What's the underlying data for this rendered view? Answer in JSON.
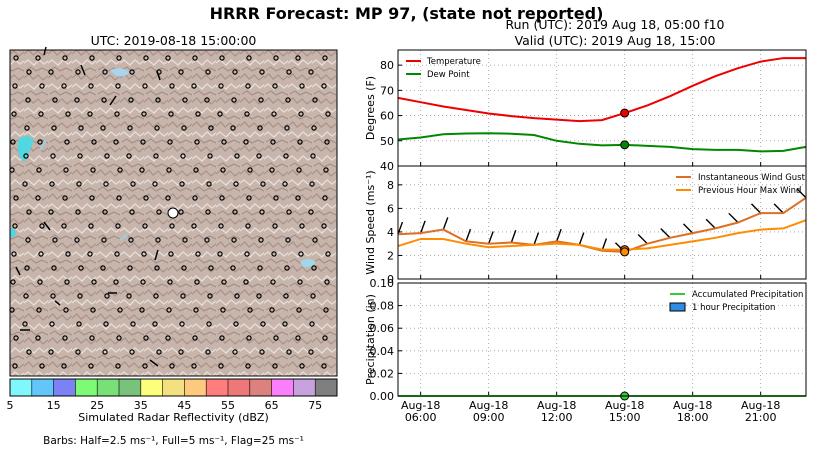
{
  "header": {
    "title": "HRRR Forecast: MP 97, (state not reported)",
    "run_line": "Run (UTC): 2019 Aug 18, 05:00 f10",
    "valid_line": "Valid (UTC): 2019 Aug 18, 15:00"
  },
  "map": {
    "title": "UTC: 2019-08-18 15:00:00",
    "colorbar_label": "Simulated Radar Reflectivity (dBZ)",
    "colorbar_ticks": [
      "5",
      "15",
      "25",
      "35",
      "45",
      "55",
      "65",
      "75"
    ],
    "colorbar_colors": [
      "#7ff7fb",
      "#62c6f9",
      "#7c82f6",
      "#7efa77",
      "#78e077",
      "#79c27c",
      "#fefe7d",
      "#f3e080",
      "#fdca7d",
      "#fe7d7d",
      "#ee7777",
      "#dd8180",
      "#fb7efb",
      "#c8a2df",
      "#7f7f7f"
    ],
    "barbs_note": "Barbs: Half=2.5 ms⁻¹, Full=5 ms⁻¹, Flag=25 ms⁻¹"
  },
  "chart_data": [
    {
      "type": "line",
      "ylabel": "Degrees (F)",
      "ylim": [
        40,
        86
      ],
      "yticks": [
        "40",
        "50",
        "60",
        "70",
        "80"
      ],
      "grid": true,
      "legend_position": "top-left",
      "x_hours": [
        5,
        6,
        7,
        8,
        9,
        10,
        11,
        12,
        13,
        14,
        15,
        16,
        17,
        18,
        19,
        20,
        21,
        22,
        23
      ],
      "series": [
        {
          "name": "Temperature",
          "color": "#ee0000",
          "values": [
            67,
            65.3,
            63.6,
            62.2,
            60.8,
            59.8,
            59,
            58.4,
            57.8,
            58.2,
            61,
            64,
            67.7,
            71.8,
            75.6,
            78.8,
            81.4,
            82.8,
            82.8
          ]
        },
        {
          "name": "Dew Point",
          "color": "#008800",
          "values": [
            50.5,
            51.3,
            52.6,
            52.9,
            53,
            52.8,
            52.3,
            50,
            48.8,
            48.2,
            48.4,
            48,
            47.6,
            46.7,
            46.4,
            46.4,
            45.8,
            46,
            47.6
          ]
        }
      ],
      "marker": {
        "hour": 15,
        "values": [
          61,
          48.4
        ]
      }
    },
    {
      "type": "line",
      "ylabel": "Wind Speed (ms⁻¹)",
      "ylim": [
        0,
        9.6
      ],
      "yticks": [
        "0",
        "2",
        "4",
        "6",
        "8"
      ],
      "grid": true,
      "legend_position": "top-right",
      "x_hours": [
        5,
        6,
        7,
        8,
        9,
        10,
        11,
        12,
        13,
        14,
        15,
        16,
        17,
        18,
        19,
        20,
        21,
        22,
        23
      ],
      "series": [
        {
          "name": "Instantaneous Wind Gust",
          "color": "#dd6f22",
          "values": [
            3.8,
            3.9,
            4.2,
            3.2,
            3.0,
            3.1,
            2.9,
            3.2,
            2.9,
            2.4,
            2.3,
            3.0,
            3.5,
            3.9,
            4.3,
            4.8,
            5.6,
            5.6,
            6.9
          ]
        },
        {
          "name": "Previous Hour Max Wind",
          "color": "#ff8c00",
          "values": [
            2.8,
            3.4,
            3.4,
            3.0,
            2.7,
            2.8,
            2.9,
            3.0,
            2.9,
            2.5,
            2.5,
            2.6,
            2.9,
            3.2,
            3.5,
            3.9,
            4.2,
            4.3,
            5.0
          ]
        }
      ],
      "marker": {
        "hour": 15,
        "values": [
          2.5,
          2.3
        ]
      }
    },
    {
      "type": "bar",
      "ylabel": "Precipitation (in)",
      "ylim": [
        0,
        0.1
      ],
      "yticks": [
        "0.00",
        "0.02",
        "0.04",
        "0.06",
        "0.08",
        "0.10"
      ],
      "grid": true,
      "legend_position": "top-right",
      "xtick_dates": [
        "Aug-18",
        "Aug-18",
        "Aug-18",
        "Aug-18",
        "Aug-18",
        "Aug-18"
      ],
      "xtick_times": [
        "06:00",
        "09:00",
        "12:00",
        "15:00",
        "18:00",
        "21:00"
      ],
      "series": [
        {
          "name": "Accumulated Precipitation",
          "color": "#33cc33",
          "values": [
            0,
            0,
            0,
            0,
            0,
            0,
            0,
            0,
            0,
            0,
            0,
            0,
            0,
            0,
            0,
            0,
            0,
            0,
            0
          ]
        },
        {
          "name": "1 hour Precipitation",
          "color": "#2e8ce6",
          "values": [
            0,
            0,
            0,
            0,
            0,
            0,
            0,
            0,
            0,
            0,
            0,
            0,
            0,
            0,
            0,
            0,
            0,
            0,
            0
          ]
        }
      ],
      "marker": {
        "hour": 15,
        "values": [
          0
        ]
      }
    }
  ]
}
